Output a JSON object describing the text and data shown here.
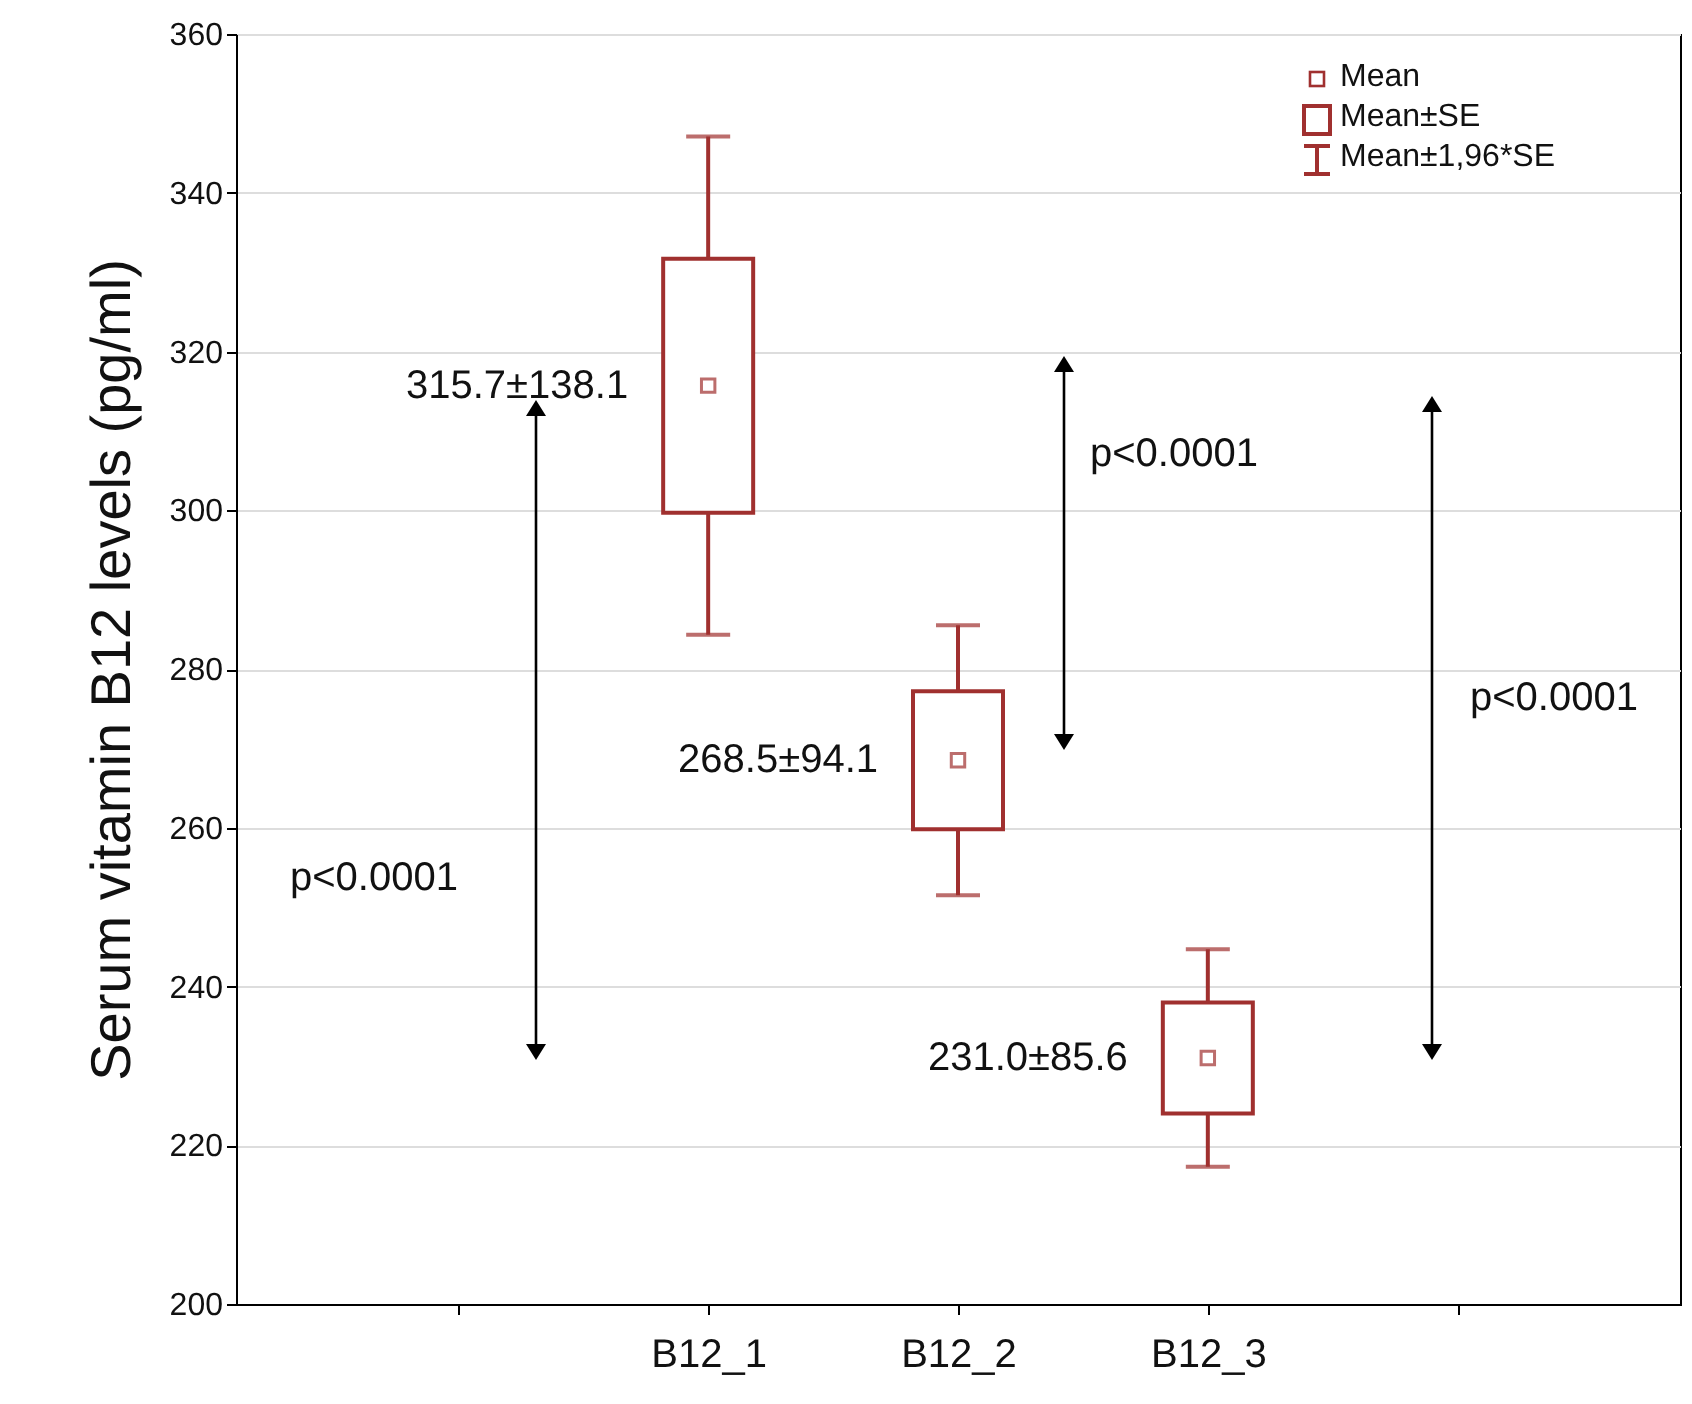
{
  "chart_data": {
    "type": "box",
    "ylabel": "Serum vitamin B12 levels (pg/ml)",
    "categories": [
      null,
      "B12_1",
      "B12_2",
      "B12_3",
      null
    ],
    "color": "#a0302f",
    "marker": "square",
    "grid": "y",
    "boxes": [
      null,
      {
        "low": 284.3,
        "q1": 299.7,
        "median": 315.7,
        "q3": 331.7,
        "high": 347.1
      },
      {
        "low": 251.5,
        "q1": 259.8,
        "median": 268.5,
        "q3": 277.2,
        "high": 285.5
      },
      {
        "low": 217.3,
        "q1": 224.0,
        "median": 231.0,
        "q3": 238.0,
        "high": 244.7
      },
      null
    ],
    "ylim": [
      200,
      360
    ],
    "yticks": [
      200,
      220,
      240,
      260,
      280,
      300,
      320,
      340,
      360
    ],
    "annotations": [
      {
        "text": "315.7±138.1",
        "x": "B12_1",
        "y": 315.7
      },
      {
        "text": "268.5±94.1",
        "x": "B12_2",
        "y": 268.5
      },
      {
        "text": "231.0±85.6",
        "x": "B12_3",
        "y": 231.0
      },
      "p<0.0001",
      "p<0.0001",
      "p<0.0001",
      "Mean",
      "Mean±SE",
      "Mean±1,96*SE"
    ]
  }
}
